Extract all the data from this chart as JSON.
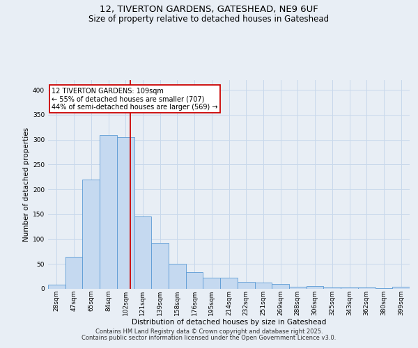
{
  "title_line1": "12, TIVERTON GARDENS, GATESHEAD, NE9 6UF",
  "title_line2": "Size of property relative to detached houses in Gateshead",
  "xlabel": "Distribution of detached houses by size in Gateshead",
  "ylabel": "Number of detached properties",
  "categories": [
    "28sqm",
    "47sqm",
    "65sqm",
    "84sqm",
    "102sqm",
    "121sqm",
    "139sqm",
    "158sqm",
    "176sqm",
    "195sqm",
    "214sqm",
    "232sqm",
    "251sqm",
    "269sqm",
    "288sqm",
    "306sqm",
    "325sqm",
    "343sqm",
    "362sqm",
    "380sqm",
    "399sqm"
  ],
  "values": [
    8,
    65,
    220,
    310,
    305,
    145,
    93,
    50,
    33,
    22,
    22,
    14,
    12,
    10,
    4,
    5,
    3,
    3,
    3,
    2,
    4
  ],
  "bar_color": "#c5d9f0",
  "bar_edge_color": "#5b9bd5",
  "bar_width": 1.0,
  "red_line_color": "#cc0000",
  "annotation_text": "12 TIVERTON GARDENS: 109sqm\n← 55% of detached houses are smaller (707)\n44% of semi-detached houses are larger (569) →",
  "annotation_box_color": "#ffffff",
  "annotation_box_edge": "#cc0000",
  "grid_color": "#c8d8eb",
  "background_color": "#e8eef5",
  "footer_line1": "Contains HM Land Registry data © Crown copyright and database right 2025.",
  "footer_line2": "Contains public sector information licensed under the Open Government Licence v3.0.",
  "ylim": [
    0,
    420
  ],
  "title_fontsize": 9.5,
  "subtitle_fontsize": 8.5,
  "axis_label_fontsize": 7.5,
  "tick_fontsize": 6.5,
  "annotation_fontsize": 7,
  "footer_fontsize": 6
}
